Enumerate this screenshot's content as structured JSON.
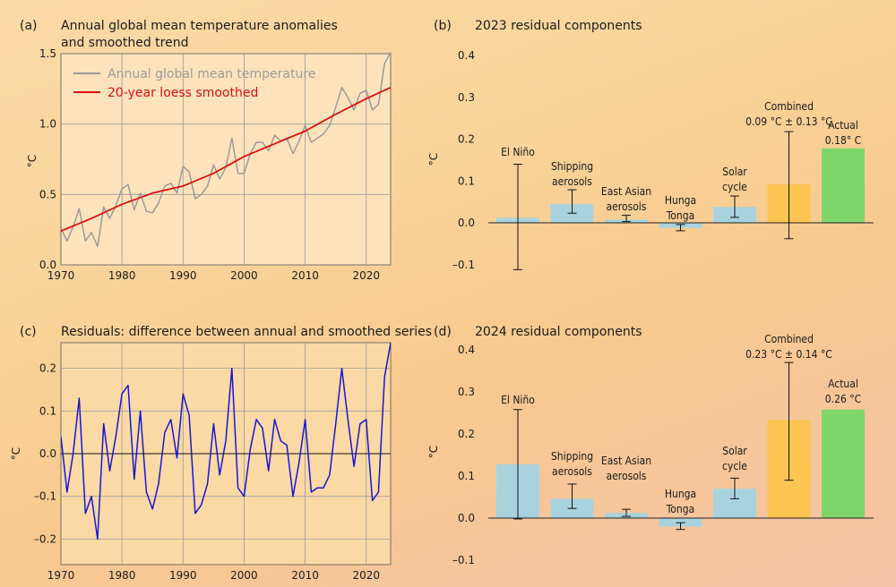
{
  "chart_data": [
    {
      "panel": "(a)",
      "type": "line",
      "title": "Annual global mean temperature anomalies and smoothed trend",
      "title_lines": [
        "Annual global mean temperature anomalies",
        "and smoothed trend"
      ],
      "ylabel": "°C",
      "xlim": [
        1970,
        2024
      ],
      "ylim": [
        0.0,
        1.5
      ],
      "xticks": [
        1970,
        1980,
        1990,
        2000,
        2010,
        2020
      ],
      "yticks": [
        "0.0",
        "0.5",
        "1.0",
        "1.5"
      ],
      "legend_position": "top-left",
      "colors": {
        "annual": "#9a9a9a",
        "smoothed": "#dd1111"
      },
      "series": [
        {
          "name": "Annual global mean temperature",
          "x": [
            1970,
            1971,
            1972,
            1973,
            1974,
            1975,
            1976,
            1977,
            1978,
            1979,
            1980,
            1981,
            1982,
            1983,
            1984,
            1985,
            1986,
            1987,
            1988,
            1989,
            1990,
            1991,
            1992,
            1993,
            1994,
            1995,
            1996,
            1997,
            1998,
            1999,
            2000,
            2001,
            2002,
            2003,
            2004,
            2005,
            2006,
            2007,
            2008,
            2009,
            2010,
            2011,
            2012,
            2013,
            2014,
            2015,
            2016,
            2017,
            2018,
            2019,
            2020,
            2021,
            2022,
            2023,
            2024
          ],
          "values": [
            0.26,
            0.17,
            0.27,
            0.4,
            0.17,
            0.23,
            0.13,
            0.41,
            0.33,
            0.42,
            0.54,
            0.57,
            0.39,
            0.51,
            0.38,
            0.37,
            0.44,
            0.56,
            0.58,
            0.51,
            0.7,
            0.66,
            0.47,
            0.5,
            0.56,
            0.71,
            0.61,
            0.69,
            0.9,
            0.65,
            0.65,
            0.79,
            0.87,
            0.87,
            0.81,
            0.92,
            0.88,
            0.9,
            0.79,
            0.88,
            0.99,
            0.87,
            0.9,
            0.93,
            0.99,
            1.12,
            1.26,
            1.19,
            1.1,
            1.22,
            1.24,
            1.1,
            1.14,
            1.43,
            1.51
          ]
        },
        {
          "name": "20-year loess smoothed",
          "x": [
            1970,
            1975,
            1980,
            1985,
            1990,
            1995,
            2000,
            2005,
            2010,
            2015,
            2020,
            2024
          ],
          "values": [
            0.24,
            0.33,
            0.43,
            0.51,
            0.56,
            0.65,
            0.77,
            0.86,
            0.95,
            1.07,
            1.18,
            1.26
          ]
        }
      ]
    },
    {
      "panel": "(b)",
      "type": "bar",
      "title": "2023 residual components",
      "ylabel": "°C",
      "ylim": [
        -0.12,
        0.42
      ],
      "yticks": [
        "0.4",
        "0.3",
        "0.2",
        "0.1",
        "0.0",
        "–0.1"
      ],
      "categories": [
        "El Niño",
        "Shipping aerosols",
        "East Asian aerosols",
        "Hunga Tonga",
        "Solar cycle",
        "Combined",
        "Actual"
      ],
      "labels": [
        [
          "El Niño"
        ],
        [
          "Shipping",
          "aerosols"
        ],
        [
          "East Asian",
          "aerosols"
        ],
        [
          "Hunga",
          "Tonga"
        ],
        [
          "Solar",
          "cycle"
        ],
        [
          "Combined",
          "0.09 °C ± 0.13 °C"
        ],
        [
          "Actual",
          "0.18° C"
        ]
      ],
      "values": [
        0.012,
        0.045,
        0.008,
        -0.012,
        0.038,
        0.092,
        0.178
      ],
      "err_low": [
        -0.112,
        0.023,
        0.003,
        -0.019,
        0.013,
        -0.038,
        null
      ],
      "err_high": [
        0.14,
        0.079,
        0.018,
        -0.004,
        0.064,
        0.218,
        null
      ],
      "colors": [
        "#a8d3de",
        "#a8d3de",
        "#a8d3de",
        "#a8d3de",
        "#a8d3de",
        "#fcc451",
        "#7ed56a"
      ]
    },
    {
      "panel": "(c)",
      "type": "line",
      "title": "Residuals: difference between annual and smoothed series",
      "ylabel": "°C",
      "xlim": [
        1970,
        2024
      ],
      "ylim": [
        -0.26,
        0.26
      ],
      "xticks": [
        1970,
        1980,
        1990,
        2000,
        2010,
        2020
      ],
      "yticks": [
        "0.2",
        "0.1",
        "0.0",
        "–0.1",
        "–0.2"
      ],
      "colors": {
        "residual": "#1515d6"
      },
      "series": [
        {
          "x": [
            1970,
            1971,
            1972,
            1973,
            1974,
            1975,
            1976,
            1977,
            1978,
            1979,
            1980,
            1981,
            1982,
            1983,
            1984,
            1985,
            1986,
            1987,
            1988,
            1989,
            1990,
            1991,
            1992,
            1993,
            1994,
            1995,
            1996,
            1997,
            1998,
            1999,
            2000,
            2001,
            2002,
            2003,
            2004,
            2005,
            2006,
            2007,
            2008,
            2009,
            2010,
            2011,
            2012,
            2013,
            2014,
            2015,
            2016,
            2017,
            2018,
            2019,
            2020,
            2021,
            2022,
            2023,
            2024
          ],
          "values": [
            0.04,
            -0.09,
            0.0,
            0.13,
            -0.14,
            -0.1,
            -0.2,
            0.07,
            -0.04,
            0.04,
            0.14,
            0.16,
            -0.06,
            0.1,
            -0.09,
            -0.13,
            -0.07,
            0.05,
            0.08,
            -0.01,
            0.14,
            0.09,
            -0.14,
            -0.12,
            -0.07,
            0.07,
            -0.05,
            0.03,
            0.2,
            -0.08,
            -0.1,
            0.01,
            0.08,
            0.06,
            -0.04,
            0.08,
            0.03,
            0.02,
            -0.1,
            -0.02,
            0.08,
            -0.09,
            -0.08,
            -0.08,
            -0.05,
            0.07,
            0.2,
            0.08,
            -0.03,
            0.07,
            0.08,
            -0.11,
            -0.09,
            0.18,
            0.26
          ]
        }
      ]
    },
    {
      "panel": "(d)",
      "type": "bar",
      "title": "2024 residual components",
      "ylabel": "°C",
      "ylim": [
        -0.12,
        0.42
      ],
      "yticks": [
        "0.4",
        "0.3",
        "0.2",
        "0.1",
        "0.0",
        "–0.1"
      ],
      "categories": [
        "El Niño",
        "Shipping aerosols",
        "East Asian aerosols",
        "Hunga Tonga",
        "Solar cycle",
        "Combined",
        "Actual"
      ],
      "labels": [
        [
          "El Niño"
        ],
        [
          "Shipping",
          "aerosols"
        ],
        [
          "East Asian",
          "aerosols"
        ],
        [
          "Hunga",
          "Tonga"
        ],
        [
          "Solar",
          "cycle"
        ],
        [
          "Combined",
          "0.23 °C ± 0.14 °C"
        ],
        [
          "Actual",
          "0.26 °C"
        ]
      ],
      "values": [
        0.128,
        0.046,
        0.012,
        -0.02,
        0.07,
        0.233,
        0.258
      ],
      "err_low": [
        -0.002,
        0.023,
        0.004,
        -0.027,
        0.046,
        0.09,
        null
      ],
      "err_high": [
        0.258,
        0.081,
        0.021,
        -0.011,
        0.095,
        0.37,
        null
      ],
      "colors": [
        "#a8d3de",
        "#a8d3de",
        "#a8d3de",
        "#a8d3de",
        "#a8d3de",
        "#fcc451",
        "#7ed56a"
      ]
    }
  ]
}
